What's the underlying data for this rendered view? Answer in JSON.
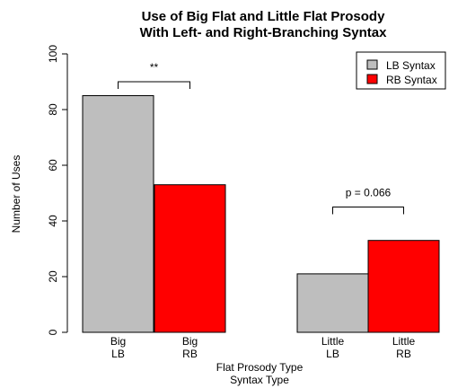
{
  "chart_data": {
    "type": "bar",
    "title_lines": [
      "Use of Big Flat and Little Flat Prosody",
      "With Left- and Right-Branching Syntax"
    ],
    "xlabel_lines": [
      "Flat Prosody Type",
      "Syntax Type"
    ],
    "ylabel": "Number of Uses",
    "ylim": [
      0,
      100
    ],
    "yticks": [
      0,
      20,
      40,
      60,
      80,
      100
    ],
    "bars": [
      {
        "label_lines": [
          "Big",
          "LB"
        ],
        "value": 85,
        "series": "LB Syntax"
      },
      {
        "label_lines": [
          "Big",
          "RB"
        ],
        "value": 53,
        "series": "RB Syntax"
      },
      {
        "label_lines": [
          "Little",
          "LB"
        ],
        "value": 21,
        "series": "LB Syntax"
      },
      {
        "label_lines": [
          "Little",
          "RB"
        ],
        "value": 33,
        "series": "RB Syntax"
      }
    ],
    "series": [
      {
        "name": "LB Syntax",
        "color": "#bebebe"
      },
      {
        "name": "RB Syntax",
        "color": "#ff0000"
      }
    ],
    "legend_position": "top-right",
    "grid": false,
    "annotations": [
      {
        "text": "**",
        "bars": [
          0,
          1
        ],
        "bracket_value": 90
      },
      {
        "text": "p = 0.066",
        "bars": [
          2,
          3
        ],
        "bracket_value": 45
      }
    ]
  }
}
